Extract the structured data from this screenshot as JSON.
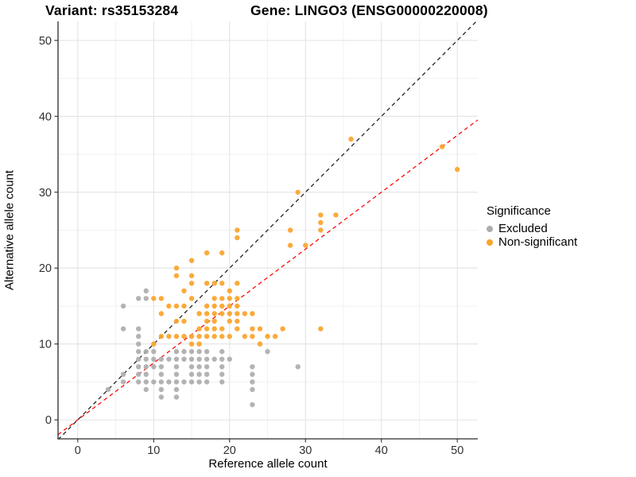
{
  "header": {
    "variant_title": "Variant: rs35153284",
    "gene_title": "Gene: LINGO3 (ENSG00000220008)"
  },
  "chart_data": {
    "type": "scatter",
    "xlabel": "Reference allele count",
    "ylabel": "Alternative allele count",
    "x_ticks": [
      0,
      10,
      20,
      30,
      40,
      50
    ],
    "y_ticks": [
      0,
      10,
      20,
      30,
      40,
      50
    ],
    "x_minor": [
      5,
      15,
      25,
      35,
      45
    ],
    "y_minor": [
      5,
      15,
      25,
      35,
      45
    ],
    "xlim": [
      -2.6,
      52.7
    ],
    "ylim": [
      -2.5,
      52.5
    ],
    "grid": "major+minor",
    "colors": {
      "major_grid": "#E3E3E3",
      "minor_grid": "#F1F1F1",
      "axis_line": "#2B2B2B",
      "tick_label": "#303030"
    },
    "legend": {
      "title": "Significance",
      "position": "right",
      "items": [
        {
          "label": "Excluded",
          "color": "#ACACAC"
        },
        {
          "label": "Non-significant",
          "color": "#F8A42B"
        }
      ]
    },
    "series": [
      {
        "name": "Excluded",
        "color": "#ACACAC",
        "points": [
          [
            9,
            17
          ],
          [
            8,
            16
          ],
          [
            9,
            16
          ],
          [
            6,
            15
          ],
          [
            6,
            12
          ],
          [
            8,
            12
          ],
          [
            8,
            11
          ],
          [
            8,
            10
          ],
          [
            8,
            9
          ],
          [
            9,
            9
          ],
          [
            10,
            9
          ],
          [
            13,
            9
          ],
          [
            14,
            9
          ],
          [
            15,
            9
          ],
          [
            16,
            9
          ],
          [
            17,
            9
          ],
          [
            19,
            9
          ],
          [
            25,
            9
          ],
          [
            8,
            8
          ],
          [
            9,
            8
          ],
          [
            10,
            8
          ],
          [
            11,
            8
          ],
          [
            12,
            8
          ],
          [
            13,
            8
          ],
          [
            14,
            8
          ],
          [
            15,
            8
          ],
          [
            16,
            8
          ],
          [
            17,
            8
          ],
          [
            18,
            8
          ],
          [
            19,
            8
          ],
          [
            20,
            8
          ],
          [
            8,
            7
          ],
          [
            9,
            7
          ],
          [
            10,
            7
          ],
          [
            11,
            7
          ],
          [
            13,
            7
          ],
          [
            15,
            7
          ],
          [
            16,
            7
          ],
          [
            17,
            7
          ],
          [
            19,
            7
          ],
          [
            23,
            7
          ],
          [
            29,
            7
          ],
          [
            6,
            6
          ],
          [
            8,
            6
          ],
          [
            9,
            6
          ],
          [
            11,
            6
          ],
          [
            13,
            6
          ],
          [
            15,
            6
          ],
          [
            16,
            6
          ],
          [
            17,
            6
          ],
          [
            19,
            6
          ],
          [
            23,
            6
          ],
          [
            6,
            5
          ],
          [
            8,
            5
          ],
          [
            9,
            5
          ],
          [
            10,
            5
          ],
          [
            11,
            5
          ],
          [
            12,
            5
          ],
          [
            13,
            5
          ],
          [
            14,
            5
          ],
          [
            15,
            5
          ],
          [
            16,
            5
          ],
          [
            17,
            5
          ],
          [
            19,
            5
          ],
          [
            23,
            5
          ],
          [
            4,
            4
          ],
          [
            9,
            4
          ],
          [
            11,
            4
          ],
          [
            13,
            4
          ],
          [
            23,
            4
          ],
          [
            11,
            3
          ],
          [
            13,
            3
          ],
          [
            23,
            2
          ]
        ]
      },
      {
        "name": "Non-significant",
        "color": "#F8A42B",
        "points": [
          [
            36,
            37
          ],
          [
            48,
            36
          ],
          [
            50,
            33
          ],
          [
            29,
            30
          ],
          [
            32,
            27
          ],
          [
            34,
            27
          ],
          [
            32,
            26
          ],
          [
            21,
            25
          ],
          [
            28,
            25
          ],
          [
            32,
            25
          ],
          [
            21,
            24
          ],
          [
            28,
            23
          ],
          [
            30,
            23
          ],
          [
            17,
            22
          ],
          [
            19,
            22
          ],
          [
            15,
            21
          ],
          [
            13,
            20
          ],
          [
            13,
            19
          ],
          [
            15,
            19
          ],
          [
            15,
            18
          ],
          [
            17,
            18
          ],
          [
            18,
            18
          ],
          [
            19,
            18
          ],
          [
            21,
            18
          ],
          [
            14,
            17
          ],
          [
            20,
            17
          ],
          [
            10,
            16
          ],
          [
            11,
            16
          ],
          [
            15,
            16
          ],
          [
            18,
            16
          ],
          [
            19,
            16
          ],
          [
            20,
            16
          ],
          [
            21,
            16
          ],
          [
            12,
            15
          ],
          [
            13,
            15
          ],
          [
            14,
            15
          ],
          [
            17,
            15
          ],
          [
            18,
            15
          ],
          [
            19,
            15
          ],
          [
            20,
            15
          ],
          [
            21,
            15
          ],
          [
            11,
            14
          ],
          [
            16,
            14
          ],
          [
            17,
            14
          ],
          [
            18,
            14
          ],
          [
            19,
            14
          ],
          [
            20,
            14
          ],
          [
            21,
            14
          ],
          [
            22,
            14
          ],
          [
            23,
            14
          ],
          [
            13,
            13
          ],
          [
            14,
            13
          ],
          [
            17,
            13
          ],
          [
            18,
            13
          ],
          [
            20,
            13
          ],
          [
            21,
            13
          ],
          [
            16,
            12
          ],
          [
            17,
            12
          ],
          [
            18,
            12
          ],
          [
            19,
            12
          ],
          [
            21,
            12
          ],
          [
            23,
            12
          ],
          [
            24,
            12
          ],
          [
            27,
            12
          ],
          [
            32,
            12
          ],
          [
            11,
            11
          ],
          [
            12,
            11
          ],
          [
            13,
            11
          ],
          [
            14,
            11
          ],
          [
            15,
            11
          ],
          [
            16,
            11
          ],
          [
            17,
            11
          ],
          [
            18,
            11
          ],
          [
            19,
            11
          ],
          [
            20,
            11
          ],
          [
            22,
            11
          ],
          [
            23,
            11
          ],
          [
            25,
            11
          ],
          [
            26,
            11
          ],
          [
            10,
            10
          ],
          [
            15,
            10
          ],
          [
            16,
            10
          ],
          [
            24,
            10
          ]
        ]
      }
    ],
    "lines": [
      {
        "name": "identity-line",
        "color": "#1A1A1A",
        "slope": 1,
        "intercept": 0,
        "dash": "5 4"
      },
      {
        "name": "expected-ratio-line",
        "color": "#FF0000",
        "slope": 0.75,
        "intercept": 0,
        "dash": "5 4"
      }
    ]
  }
}
